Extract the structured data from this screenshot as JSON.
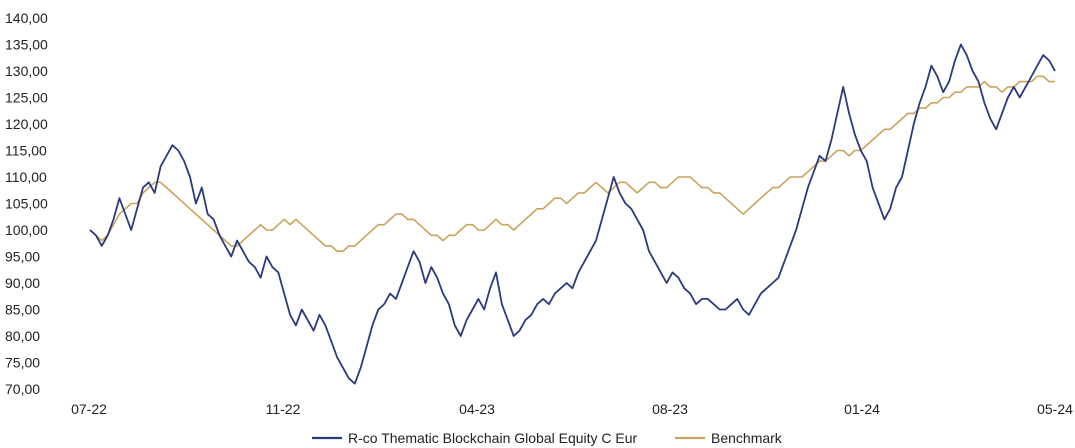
{
  "chart_data": {
    "type": "line",
    "title": "",
    "xlabel": "",
    "ylabel": "",
    "ylim": [
      70,
      140
    ],
    "yticks": [
      "70,00",
      "75,00",
      "80,00",
      "85,00",
      "90,00",
      "95,00",
      "100,00",
      "105,00",
      "110,00",
      "115,00",
      "120,00",
      "125,00",
      "130,00",
      "135,00",
      "140,00"
    ],
    "xticks": [
      "07-22",
      "11-22",
      "04-23",
      "08-23",
      "01-24",
      "05-24"
    ],
    "grid": false,
    "legend_position": "bottom",
    "series": [
      {
        "name": "R-co Thematic Blockchain Global Equity C Eur",
        "color": "#2b3a7e",
        "points": [
          [
            0,
            100
          ],
          [
            1,
            99
          ],
          [
            2,
            97
          ],
          [
            3,
            99
          ],
          [
            4,
            102
          ],
          [
            5,
            106
          ],
          [
            6,
            103
          ],
          [
            7,
            100
          ],
          [
            8,
            104
          ],
          [
            9,
            108
          ],
          [
            10,
            109
          ],
          [
            11,
            107
          ],
          [
            12,
            112
          ],
          [
            13,
            114
          ],
          [
            14,
            116
          ],
          [
            15,
            115
          ],
          [
            16,
            113
          ],
          [
            17,
            110
          ],
          [
            18,
            105
          ],
          [
            19,
            108
          ],
          [
            20,
            103
          ],
          [
            21,
            102
          ],
          [
            22,
            99
          ],
          [
            23,
            97
          ],
          [
            24,
            95
          ],
          [
            25,
            98
          ],
          [
            26,
            96
          ],
          [
            27,
            94
          ],
          [
            28,
            93
          ],
          [
            29,
            91
          ],
          [
            30,
            95
          ],
          [
            31,
            93
          ],
          [
            32,
            92
          ],
          [
            33,
            88
          ],
          [
            34,
            84
          ],
          [
            35,
            82
          ],
          [
            36,
            85
          ],
          [
            37,
            83
          ],
          [
            38,
            81
          ],
          [
            39,
            84
          ],
          [
            40,
            82
          ],
          [
            41,
            79
          ],
          [
            42,
            76
          ],
          [
            43,
            74
          ],
          [
            44,
            72
          ],
          [
            45,
            71
          ],
          [
            46,
            74
          ],
          [
            47,
            78
          ],
          [
            48,
            82
          ],
          [
            49,
            85
          ],
          [
            50,
            86
          ],
          [
            51,
            88
          ],
          [
            52,
            87
          ],
          [
            53,
            90
          ],
          [
            54,
            93
          ],
          [
            55,
            96
          ],
          [
            56,
            94
          ],
          [
            57,
            90
          ],
          [
            58,
            93
          ],
          [
            59,
            91
          ],
          [
            60,
            88
          ],
          [
            61,
            86
          ],
          [
            62,
            82
          ],
          [
            63,
            80
          ],
          [
            64,
            83
          ],
          [
            65,
            85
          ],
          [
            66,
            87
          ],
          [
            67,
            85
          ],
          [
            68,
            89
          ],
          [
            69,
            92
          ],
          [
            70,
            86
          ],
          [
            71,
            83
          ],
          [
            72,
            80
          ],
          [
            73,
            81
          ],
          [
            74,
            83
          ],
          [
            75,
            84
          ],
          [
            76,
            86
          ],
          [
            77,
            87
          ],
          [
            78,
            86
          ],
          [
            79,
            88
          ],
          [
            80,
            89
          ],
          [
            81,
            90
          ],
          [
            82,
            89
          ],
          [
            83,
            92
          ],
          [
            84,
            94
          ],
          [
            85,
            96
          ],
          [
            86,
            98
          ],
          [
            87,
            102
          ],
          [
            88,
            106
          ],
          [
            89,
            110
          ],
          [
            90,
            107
          ],
          [
            91,
            105
          ],
          [
            92,
            104
          ],
          [
            93,
            102
          ],
          [
            94,
            100
          ],
          [
            95,
            96
          ],
          [
            96,
            94
          ],
          [
            97,
            92
          ],
          [
            98,
            90
          ],
          [
            99,
            92
          ],
          [
            100,
            91
          ],
          [
            101,
            89
          ],
          [
            102,
            88
          ],
          [
            103,
            86
          ],
          [
            104,
            87
          ],
          [
            105,
            87
          ],
          [
            106,
            86
          ],
          [
            107,
            85
          ],
          [
            108,
            85
          ],
          [
            109,
            86
          ],
          [
            110,
            87
          ],
          [
            111,
            85
          ],
          [
            112,
            84
          ],
          [
            113,
            86
          ],
          [
            114,
            88
          ],
          [
            115,
            89
          ],
          [
            116,
            90
          ],
          [
            117,
            91
          ],
          [
            118,
            94
          ],
          [
            119,
            97
          ],
          [
            120,
            100
          ],
          [
            121,
            104
          ],
          [
            122,
            108
          ],
          [
            123,
            111
          ],
          [
            124,
            114
          ],
          [
            125,
            113
          ],
          [
            126,
            117
          ],
          [
            127,
            122
          ],
          [
            128,
            127
          ],
          [
            129,
            122
          ],
          [
            130,
            118
          ],
          [
            131,
            115
          ],
          [
            132,
            113
          ],
          [
            133,
            108
          ],
          [
            134,
            105
          ],
          [
            135,
            102
          ],
          [
            136,
            104
          ],
          [
            137,
            108
          ],
          [
            138,
            110
          ],
          [
            139,
            115
          ],
          [
            140,
            120
          ],
          [
            141,
            124
          ],
          [
            142,
            127
          ],
          [
            143,
            131
          ],
          [
            144,
            129
          ],
          [
            145,
            126
          ],
          [
            146,
            128
          ],
          [
            147,
            132
          ],
          [
            148,
            135
          ],
          [
            149,
            133
          ],
          [
            150,
            130
          ],
          [
            151,
            128
          ],
          [
            152,
            124
          ],
          [
            153,
            121
          ],
          [
            154,
            119
          ],
          [
            155,
            122
          ],
          [
            156,
            125
          ],
          [
            157,
            127
          ],
          [
            158,
            125
          ],
          [
            159,
            127
          ],
          [
            160,
            129
          ],
          [
            161,
            131
          ],
          [
            162,
            133
          ],
          [
            163,
            132
          ],
          [
            164,
            130
          ]
        ]
      },
      {
        "name": "Benchmark",
        "color": "#c9a45c",
        "points": [
          [
            0,
            100
          ],
          [
            1,
            99
          ],
          [
            2,
            98
          ],
          [
            3,
            99
          ],
          [
            4,
            101
          ],
          [
            5,
            103
          ],
          [
            6,
            104
          ],
          [
            7,
            105
          ],
          [
            8,
            105
          ],
          [
            9,
            107
          ],
          [
            10,
            108
          ],
          [
            11,
            109
          ],
          [
            12,
            109
          ],
          [
            13,
            108
          ],
          [
            14,
            107
          ],
          [
            15,
            106
          ],
          [
            16,
            105
          ],
          [
            17,
            104
          ],
          [
            18,
            103
          ],
          [
            19,
            102
          ],
          [
            20,
            101
          ],
          [
            21,
            100
          ],
          [
            22,
            99
          ],
          [
            23,
            98
          ],
          [
            24,
            97
          ],
          [
            25,
            97
          ],
          [
            26,
            98
          ],
          [
            27,
            99
          ],
          [
            28,
            100
          ],
          [
            29,
            101
          ],
          [
            30,
            100
          ],
          [
            31,
            100
          ],
          [
            32,
            101
          ],
          [
            33,
            102
          ],
          [
            34,
            101
          ],
          [
            35,
            102
          ],
          [
            36,
            101
          ],
          [
            37,
            100
          ],
          [
            38,
            99
          ],
          [
            39,
            98
          ],
          [
            40,
            97
          ],
          [
            41,
            97
          ],
          [
            42,
            96
          ],
          [
            43,
            96
          ],
          [
            44,
            97
          ],
          [
            45,
            97
          ],
          [
            46,
            98
          ],
          [
            47,
            99
          ],
          [
            48,
            100
          ],
          [
            49,
            101
          ],
          [
            50,
            101
          ],
          [
            51,
            102
          ],
          [
            52,
            103
          ],
          [
            53,
            103
          ],
          [
            54,
            102
          ],
          [
            55,
            102
          ],
          [
            56,
            101
          ],
          [
            57,
            100
          ],
          [
            58,
            99
          ],
          [
            59,
            99
          ],
          [
            60,
            98
          ],
          [
            61,
            99
          ],
          [
            62,
            99
          ],
          [
            63,
            100
          ],
          [
            64,
            101
          ],
          [
            65,
            101
          ],
          [
            66,
            100
          ],
          [
            67,
            100
          ],
          [
            68,
            101
          ],
          [
            69,
            102
          ],
          [
            70,
            101
          ],
          [
            71,
            101
          ],
          [
            72,
            100
          ],
          [
            73,
            101
          ],
          [
            74,
            102
          ],
          [
            75,
            103
          ],
          [
            76,
            104
          ],
          [
            77,
            104
          ],
          [
            78,
            105
          ],
          [
            79,
            106
          ],
          [
            80,
            106
          ],
          [
            81,
            105
          ],
          [
            82,
            106
          ],
          [
            83,
            107
          ],
          [
            84,
            107
          ],
          [
            85,
            108
          ],
          [
            86,
            109
          ],
          [
            87,
            108
          ],
          [
            88,
            107
          ],
          [
            89,
            108
          ],
          [
            90,
            109
          ],
          [
            91,
            109
          ],
          [
            92,
            108
          ],
          [
            93,
            107
          ],
          [
            94,
            108
          ],
          [
            95,
            109
          ],
          [
            96,
            109
          ],
          [
            97,
            108
          ],
          [
            98,
            108
          ],
          [
            99,
            109
          ],
          [
            100,
            110
          ],
          [
            101,
            110
          ],
          [
            102,
            110
          ],
          [
            103,
            109
          ],
          [
            104,
            108
          ],
          [
            105,
            108
          ],
          [
            106,
            107
          ],
          [
            107,
            107
          ],
          [
            108,
            106
          ],
          [
            109,
            105
          ],
          [
            110,
            104
          ],
          [
            111,
            103
          ],
          [
            112,
            104
          ],
          [
            113,
            105
          ],
          [
            114,
            106
          ],
          [
            115,
            107
          ],
          [
            116,
            108
          ],
          [
            117,
            108
          ],
          [
            118,
            109
          ],
          [
            119,
            110
          ],
          [
            120,
            110
          ],
          [
            121,
            110
          ],
          [
            122,
            111
          ],
          [
            123,
            112
          ],
          [
            124,
            113
          ],
          [
            125,
            113
          ],
          [
            126,
            114
          ],
          [
            127,
            115
          ],
          [
            128,
            115
          ],
          [
            129,
            114
          ],
          [
            130,
            115
          ],
          [
            131,
            115
          ],
          [
            132,
            116
          ],
          [
            133,
            117
          ],
          [
            134,
            118
          ],
          [
            135,
            119
          ],
          [
            136,
            119
          ],
          [
            137,
            120
          ],
          [
            138,
            121
          ],
          [
            139,
            122
          ],
          [
            140,
            122
          ],
          [
            141,
            123
          ],
          [
            142,
            123
          ],
          [
            143,
            124
          ],
          [
            144,
            124
          ],
          [
            145,
            125
          ],
          [
            146,
            125
          ],
          [
            147,
            126
          ],
          [
            148,
            126
          ],
          [
            149,
            127
          ],
          [
            150,
            127
          ],
          [
            151,
            127
          ],
          [
            152,
            128
          ],
          [
            153,
            127
          ],
          [
            154,
            127
          ],
          [
            155,
            126
          ],
          [
            156,
            127
          ],
          [
            157,
            127
          ],
          [
            158,
            128
          ],
          [
            159,
            128
          ],
          [
            160,
            128
          ],
          [
            161,
            129
          ],
          [
            162,
            129
          ],
          [
            163,
            128
          ],
          [
            164,
            128
          ]
        ]
      }
    ]
  },
  "legend": {
    "items": [
      {
        "label": "R-co Thematic Blockchain Global Equity C Eur",
        "color": "#2b3a7e"
      },
      {
        "label": "Benchmark",
        "color": "#c9a45c"
      }
    ]
  }
}
